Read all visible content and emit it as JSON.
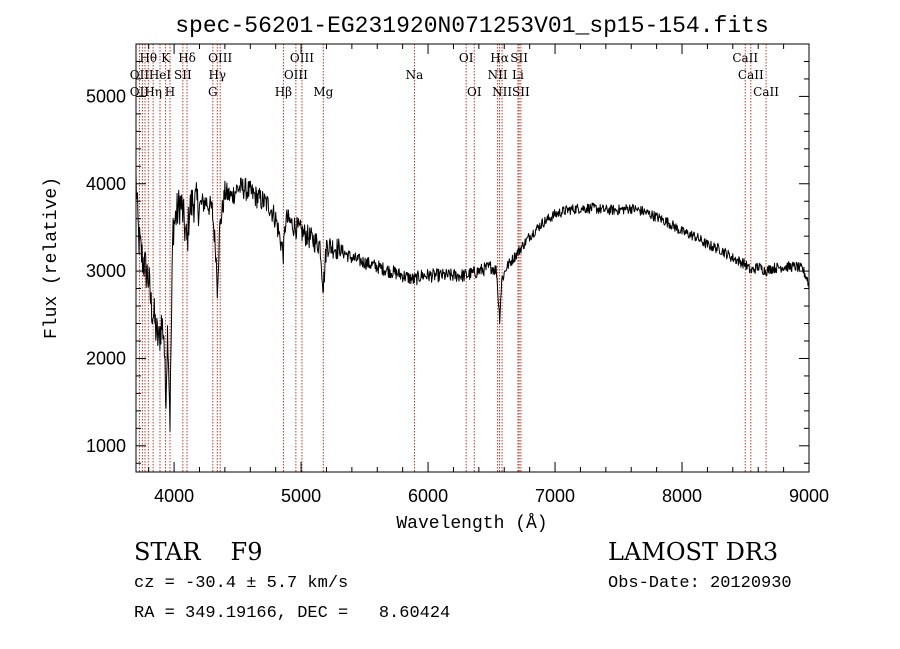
{
  "chart_data": {
    "type": "line",
    "title": "spec-56201-EG231920N071253V01_sp15-154.fits",
    "xlabel": "Wavelength (Å)",
    "ylabel": "Flux (relative)",
    "xlim": [
      3700,
      9000
    ],
    "ylim": [
      700,
      5600
    ],
    "xticks": [
      4000,
      5000,
      6000,
      7000,
      8000,
      9000
    ],
    "xtick_labels": [
      "4000",
      "5000",
      "6000",
      "7000",
      "8000",
      "9000"
    ],
    "yticks": [
      1000,
      2000,
      3000,
      4000,
      5000
    ],
    "ytick_labels": [
      "1000",
      "2000",
      "3000",
      "4000",
      "5000"
    ],
    "grid": false,
    "series": [
      {
        "name": "flux",
        "color": "#000000",
        "noise": 60,
        "x": [
          3700,
          3720,
          3740,
          3760,
          3780,
          3800,
          3820,
          3840,
          3860,
          3880,
          3900,
          3920,
          3933,
          3950,
          3968,
          3990,
          4010,
          4030,
          4050,
          4070,
          4102,
          4120,
          4150,
          4200,
          4250,
          4300,
          4330,
          4340,
          4360,
          4400,
          4450,
          4500,
          4550,
          4600,
          4650,
          4700,
          4750,
          4800,
          4861,
          4880,
          4920,
          4960,
          5000,
          5050,
          5100,
          5150,
          5175,
          5200,
          5300,
          5400,
          5500,
          5600,
          5700,
          5800,
          5890,
          5950,
          6000,
          6100,
          6200,
          6300,
          6400,
          6500,
          6540,
          6563,
          6580,
          6620,
          6700,
          6800,
          6900,
          7000,
          7100,
          7200,
          7300,
          7400,
          7500,
          7600,
          7700,
          7800,
          7900,
          8000,
          8100,
          8200,
          8300,
          8400,
          8498,
          8542,
          8600,
          8662,
          8700,
          8800,
          8900,
          8950,
          8990,
          9000
        ],
        "y": [
          4050,
          3400,
          3200,
          3100,
          3000,
          2900,
          2600,
          2500,
          2300,
          2200,
          2400,
          2300,
          1500,
          2400,
          1300,
          3500,
          3600,
          3700,
          3800,
          3650,
          3300,
          3700,
          3800,
          3750,
          3800,
          3700,
          3200,
          2800,
          3500,
          3900,
          3850,
          3950,
          3950,
          3900,
          3850,
          3800,
          3750,
          3600,
          3200,
          3600,
          3550,
          3500,
          3450,
          3400,
          3350,
          3300,
          2800,
          3300,
          3250,
          3150,
          3100,
          3050,
          3000,
          2950,
          2900,
          2950,
          2950,
          2950,
          2950,
          2950,
          3000,
          3050,
          3000,
          2450,
          2900,
          3050,
          3200,
          3400,
          3550,
          3650,
          3700,
          3720,
          3720,
          3700,
          3700,
          3720,
          3680,
          3620,
          3550,
          3450,
          3400,
          3300,
          3250,
          3150,
          3080,
          3000,
          3050,
          3000,
          3030,
          3050,
          3050,
          3020,
          2900,
          2800
        ]
      }
    ],
    "line_labels": [
      {
        "label": "Hθ",
        "x": 3797,
        "row": 0
      },
      {
        "label": "OII",
        "x": 3727,
        "row": 1
      },
      {
        "label": "OII",
        "x": 3727,
        "row": 2
      },
      {
        "label": "HeI",
        "x": 3889,
        "row": 1
      },
      {
        "label": "Hη",
        "x": 3835,
        "row": 2
      },
      {
        "label": "K",
        "x": 3933,
        "row": 0
      },
      {
        "label": "SII",
        "x": 4069,
        "row": 1
      },
      {
        "label": "H",
        "x": 3968,
        "row": 2
      },
      {
        "label": "Hδ",
        "x": 4102,
        "row": 0
      },
      {
        "label": "OIII",
        "x": 4363,
        "row": 0
      },
      {
        "label": "Hγ",
        "x": 4340,
        "row": 1
      },
      {
        "label": "G",
        "x": 4305,
        "row": 2
      },
      {
        "label": "OIII",
        "x": 5007,
        "row": 0
      },
      {
        "label": "OIII",
        "x": 4959,
        "row": 1
      },
      {
        "label": "Hβ",
        "x": 4861,
        "row": 2
      },
      {
        "label": "Mg",
        "x": 5175,
        "row": 2
      },
      {
        "label": "Na",
        "x": 5893,
        "row": 1
      },
      {
        "label": "OI",
        "x": 6300,
        "row": 0
      },
      {
        "label": "OI",
        "x": 6364,
        "row": 2
      },
      {
        "label": "Hα",
        "x": 6563,
        "row": 0
      },
      {
        "label": "SII",
        "x": 6717,
        "row": 0
      },
      {
        "label": "NII",
        "x": 6548,
        "row": 1
      },
      {
        "label": "Li",
        "x": 6708,
        "row": 1
      },
      {
        "label": "NII",
        "x": 6583,
        "row": 2
      },
      {
        "label": "SII",
        "x": 6731,
        "row": 2
      },
      {
        "label": "CaII",
        "x": 8498,
        "row": 0
      },
      {
        "label": "CaII",
        "x": 8542,
        "row": 1
      },
      {
        "label": "CaII",
        "x": 8662,
        "row": 2
      }
    ],
    "marker_lines": [
      3727,
      3750,
      3771,
      3797,
      3835,
      3889,
      3933,
      3968,
      4069,
      4102,
      4305,
      4340,
      4363,
      4861,
      4959,
      5007,
      5175,
      5893,
      6300,
      6364,
      6548,
      6563,
      6583,
      6708,
      6717,
      6731,
      8498,
      8542,
      8662
    ]
  },
  "info": {
    "class_label": "STAR",
    "subclass": "F9",
    "survey": "LAMOST DR3",
    "cz": "cz = -30.4 ± 5.7 km/s",
    "obs_date": "Obs-Date: 20120930",
    "coords": "RA = 349.19166, DEC =   8.60424"
  },
  "colors": {
    "marker_line": "#c0392b",
    "spectrum": "#000000",
    "axes": "#000000"
  }
}
